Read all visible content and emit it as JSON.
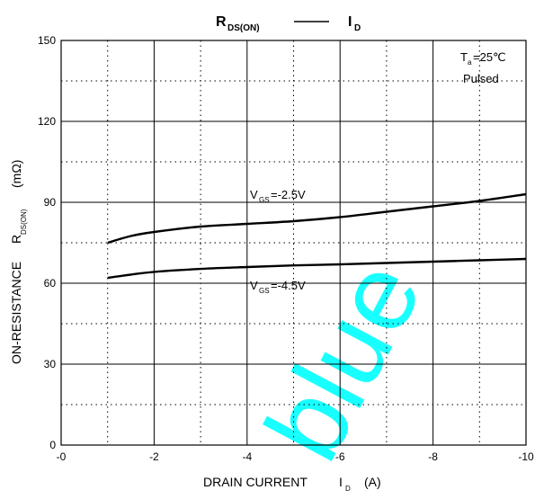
{
  "chart_data": {
    "type": "line",
    "title": {
      "main": "R",
      "main_sub": "DS(ON)",
      "dash": "—",
      "vs": "I",
      "vs_sub": "D"
    },
    "xlabel": {
      "text": "DRAIN CURRENT",
      "symbol": "I",
      "symbol_sub": "D",
      "unit": "(A)"
    },
    "ylabel": {
      "text": "ON-RESISTANCE",
      "symbol": "R",
      "symbol_sub": "DS(ON)",
      "unit": "(mΩ)"
    },
    "xlim": [
      0,
      -10
    ],
    "ylim": [
      0,
      150
    ],
    "x_tick_labels": [
      "-0",
      "-2",
      "-4",
      "-6",
      "-8",
      "-10"
    ],
    "x_ticks": [
      0,
      -2,
      -4,
      -6,
      -8,
      -10
    ],
    "y_tick_labels": [
      "0",
      "30",
      "60",
      "90",
      "120",
      "150"
    ],
    "y_ticks": [
      0,
      30,
      60,
      90,
      120,
      150
    ],
    "y_minor_dotted": [
      15,
      45,
      75,
      105,
      135
    ],
    "x_minor_dotted": [
      -1,
      -3,
      -5,
      -7,
      -9
    ],
    "conditions": {
      "ta": "T",
      "ta_sub": "a",
      "ta_val": "=25℃",
      "mode": "Pulsed"
    },
    "series": [
      {
        "label_v": "V",
        "label_sub": "GS",
        "label_val": "=-2.5V",
        "x": [
          -1,
          -1.5,
          -2,
          -3,
          -4,
          -5,
          -6,
          -7,
          -8,
          -9,
          -10
        ],
        "y": [
          75,
          77.5,
          79,
          81,
          82,
          83,
          84.5,
          86.5,
          88.5,
          90.5,
          93
        ]
      },
      {
        "label_v": "V",
        "label_sub": "GS",
        "label_val": "=-4.5V",
        "x": [
          -1,
          -1.5,
          -2,
          -3,
          -4,
          -5,
          -6,
          -7,
          -8,
          -9,
          -10
        ],
        "y": [
          62,
          63.2,
          64.2,
          65.3,
          66,
          66.6,
          67,
          67.5,
          68,
          68.5,
          69
        ]
      }
    ],
    "grid": "solid major, dotted minor"
  },
  "watermark": "blue",
  "colors": {
    "watermark": "#00ffff",
    "line": "#000000",
    "grid": "#000000"
  }
}
